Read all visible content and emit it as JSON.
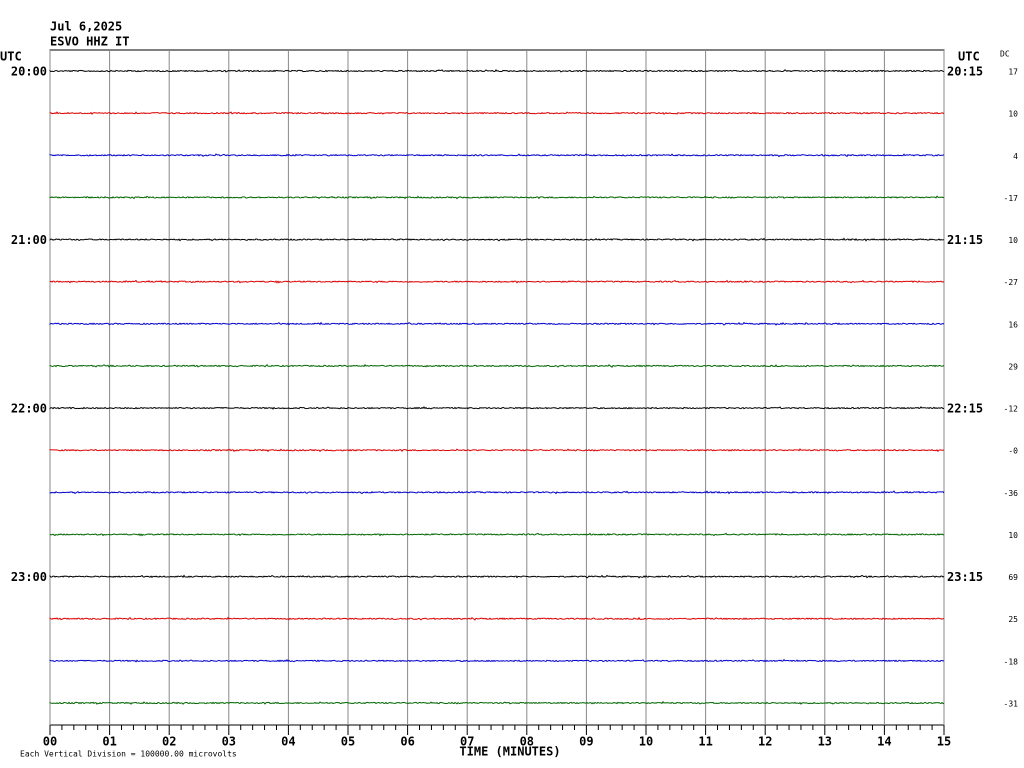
{
  "chart_data": {
    "type": "helicorder",
    "date": "Jul 6,2025",
    "station": "ESVO HHZ IT",
    "left_axis_title": "UTC",
    "right_axis_title": "UTC",
    "dc_title": "DC",
    "left_labels": [
      "20:00",
      "21:00",
      "22:00",
      "23:00"
    ],
    "right_labels": [
      "20:15",
      "21:15",
      "22:15",
      "23:15"
    ],
    "traces_per_label": 4,
    "trace_colors": [
      "#000000",
      "#dd0000",
      "#0000cc",
      "#006600"
    ],
    "dc_offsets": [
      17,
      10,
      4,
      -17,
      10,
      -27,
      16,
      29,
      -12,
      {
        "value": 0,
        "label": "-0"
      },
      -36,
      10,
      69,
      25,
      -18,
      -31
    ],
    "xlim": [
      0,
      15
    ],
    "xticks": [
      {
        "value": 0,
        "label": "00"
      },
      {
        "value": 1,
        "label": "01"
      },
      {
        "value": 2,
        "label": "02"
      },
      {
        "value": 3,
        "label": "03"
      },
      {
        "value": 4,
        "label": "04"
      },
      {
        "value": 5,
        "label": "05"
      },
      {
        "value": 6,
        "label": "06"
      },
      {
        "value": 7,
        "label": "07"
      },
      {
        "value": 8,
        "label": "08"
      },
      {
        "value": 9,
        "label": "09"
      },
      {
        "value": 10,
        "label": "10"
      },
      {
        "value": 11,
        "label": "11"
      },
      {
        "value": 12,
        "label": "12"
      },
      {
        "value": 13,
        "label": "13"
      },
      {
        "value": 14,
        "label": "14"
      },
      {
        "value": 15,
        "label": "15"
      }
    ],
    "xlabel": "TIME (MINUTES)",
    "footnote": "Each Vertical Division = 100000.00 microvolts"
  }
}
